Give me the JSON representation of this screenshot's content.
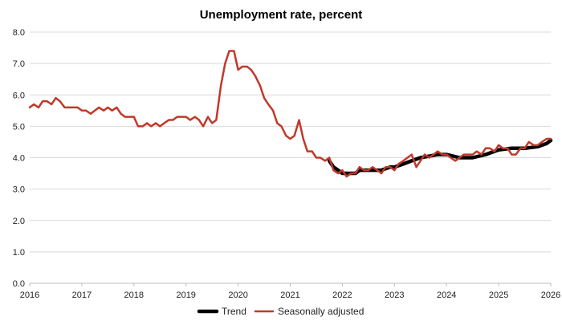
{
  "chart_data": {
    "type": "line",
    "title": "Unemployment rate, percent",
    "xlabel": "",
    "ylabel": "",
    "xlim": [
      2016,
      2026
    ],
    "ylim": [
      0,
      8
    ],
    "x_ticks": [
      "2016",
      "2017",
      "2018",
      "2019",
      "2020",
      "2021",
      "2022",
      "2023",
      "2024",
      "2025",
      "2026"
    ],
    "y_ticks": [
      "0.0",
      "1.0",
      "2.0",
      "3.0",
      "4.0",
      "5.0",
      "6.0",
      "7.0",
      "8.0"
    ],
    "grid": "horizontal",
    "legend_position": "bottom",
    "series": [
      {
        "name": "Trend",
        "color": "#000000",
        "x": [
          2021.75,
          2021.83,
          2021.92,
          2022.0,
          2022.08,
          2022.17,
          2022.25,
          2022.33,
          2022.42,
          2022.5,
          2022.58,
          2022.67,
          2022.75,
          2022.83,
          2022.92,
          2023.0,
          2023.17,
          2023.33,
          2023.5,
          2023.67,
          2023.83,
          2024.0,
          2024.25,
          2024.5,
          2024.75,
          2025.0,
          2025.25,
          2025.5,
          2025.75,
          2025.92,
          2026.0
        ],
        "values": [
          3.9,
          3.7,
          3.6,
          3.5,
          3.5,
          3.5,
          3.5,
          3.6,
          3.6,
          3.6,
          3.6,
          3.6,
          3.6,
          3.65,
          3.7,
          3.7,
          3.8,
          3.9,
          4.0,
          4.05,
          4.1,
          4.1,
          4.0,
          4.0,
          4.1,
          4.25,
          4.3,
          4.3,
          4.35,
          4.45,
          4.55
        ]
      },
      {
        "name": "Seasonally adjusted",
        "color": "#c0392b",
        "x": [
          2016.0,
          2016.08,
          2016.17,
          2016.25,
          2016.33,
          2016.42,
          2016.5,
          2016.58,
          2016.67,
          2016.75,
          2016.83,
          2016.92,
          2017.0,
          2017.08,
          2017.17,
          2017.25,
          2017.33,
          2017.42,
          2017.5,
          2017.58,
          2017.67,
          2017.75,
          2017.83,
          2017.92,
          2018.0,
          2018.08,
          2018.17,
          2018.25,
          2018.33,
          2018.42,
          2018.5,
          2018.58,
          2018.67,
          2018.75,
          2018.83,
          2018.92,
          2019.0,
          2019.08,
          2019.17,
          2019.25,
          2019.33,
          2019.42,
          2019.5,
          2019.58,
          2019.67,
          2019.75,
          2019.83,
          2019.92,
          2020.0,
          2020.08,
          2020.17,
          2020.25,
          2020.33,
          2020.42,
          2020.5,
          2020.58,
          2020.67,
          2020.75,
          2020.83,
          2020.92,
          2021.0,
          2021.08,
          2021.17,
          2021.25,
          2021.33,
          2021.42,
          2021.5,
          2021.58,
          2021.67,
          2021.75,
          2021.83,
          2021.92,
          2022.0,
          2022.08,
          2022.17,
          2022.25,
          2022.33,
          2022.42,
          2022.5,
          2022.58,
          2022.67,
          2022.75,
          2022.83,
          2022.92,
          2023.0,
          2023.08,
          2023.17,
          2023.25,
          2023.33,
          2023.42,
          2023.5,
          2023.58,
          2023.67,
          2023.75,
          2023.83,
          2023.92,
          2024.0,
          2024.08,
          2024.17,
          2024.25,
          2024.33,
          2024.42,
          2024.5,
          2024.58,
          2024.67,
          2024.75,
          2024.83,
          2024.92,
          2025.0,
          2025.08,
          2025.17,
          2025.25,
          2025.33,
          2025.42,
          2025.5,
          2025.58,
          2025.67,
          2025.75,
          2025.83,
          2025.92,
          2026.0
        ],
        "values": [
          5.6,
          5.7,
          5.6,
          5.8,
          5.8,
          5.7,
          5.9,
          5.8,
          5.6,
          5.6,
          5.6,
          5.6,
          5.5,
          5.5,
          5.4,
          5.5,
          5.6,
          5.5,
          5.6,
          5.5,
          5.6,
          5.4,
          5.3,
          5.3,
          5.3,
          5.0,
          5.0,
          5.1,
          5.0,
          5.1,
          5.0,
          5.1,
          5.2,
          5.2,
          5.3,
          5.3,
          5.3,
          5.2,
          5.3,
          5.2,
          5.0,
          5.3,
          5.1,
          5.2,
          6.3,
          7.0,
          7.4,
          7.4,
          6.8,
          6.9,
          6.9,
          6.8,
          6.6,
          6.3,
          5.9,
          5.7,
          5.5,
          5.1,
          5.0,
          4.7,
          4.6,
          4.7,
          5.2,
          4.6,
          4.2,
          4.2,
          4.0,
          4.0,
          3.9,
          4.0,
          3.6,
          3.5,
          3.6,
          3.4,
          3.5,
          3.5,
          3.7,
          3.6,
          3.6,
          3.7,
          3.6,
          3.5,
          3.7,
          3.7,
          3.6,
          3.8,
          3.9,
          4.0,
          4.1,
          3.7,
          3.9,
          4.1,
          4.0,
          4.1,
          4.2,
          4.1,
          4.1,
          4.0,
          3.9,
          4.0,
          4.1,
          4.1,
          4.1,
          4.2,
          4.1,
          4.3,
          4.3,
          4.2,
          4.4,
          4.3,
          4.3,
          4.1,
          4.1,
          4.3,
          4.3,
          4.5,
          4.4,
          4.4,
          4.5,
          4.6,
          4.6
        ]
      }
    ]
  }
}
